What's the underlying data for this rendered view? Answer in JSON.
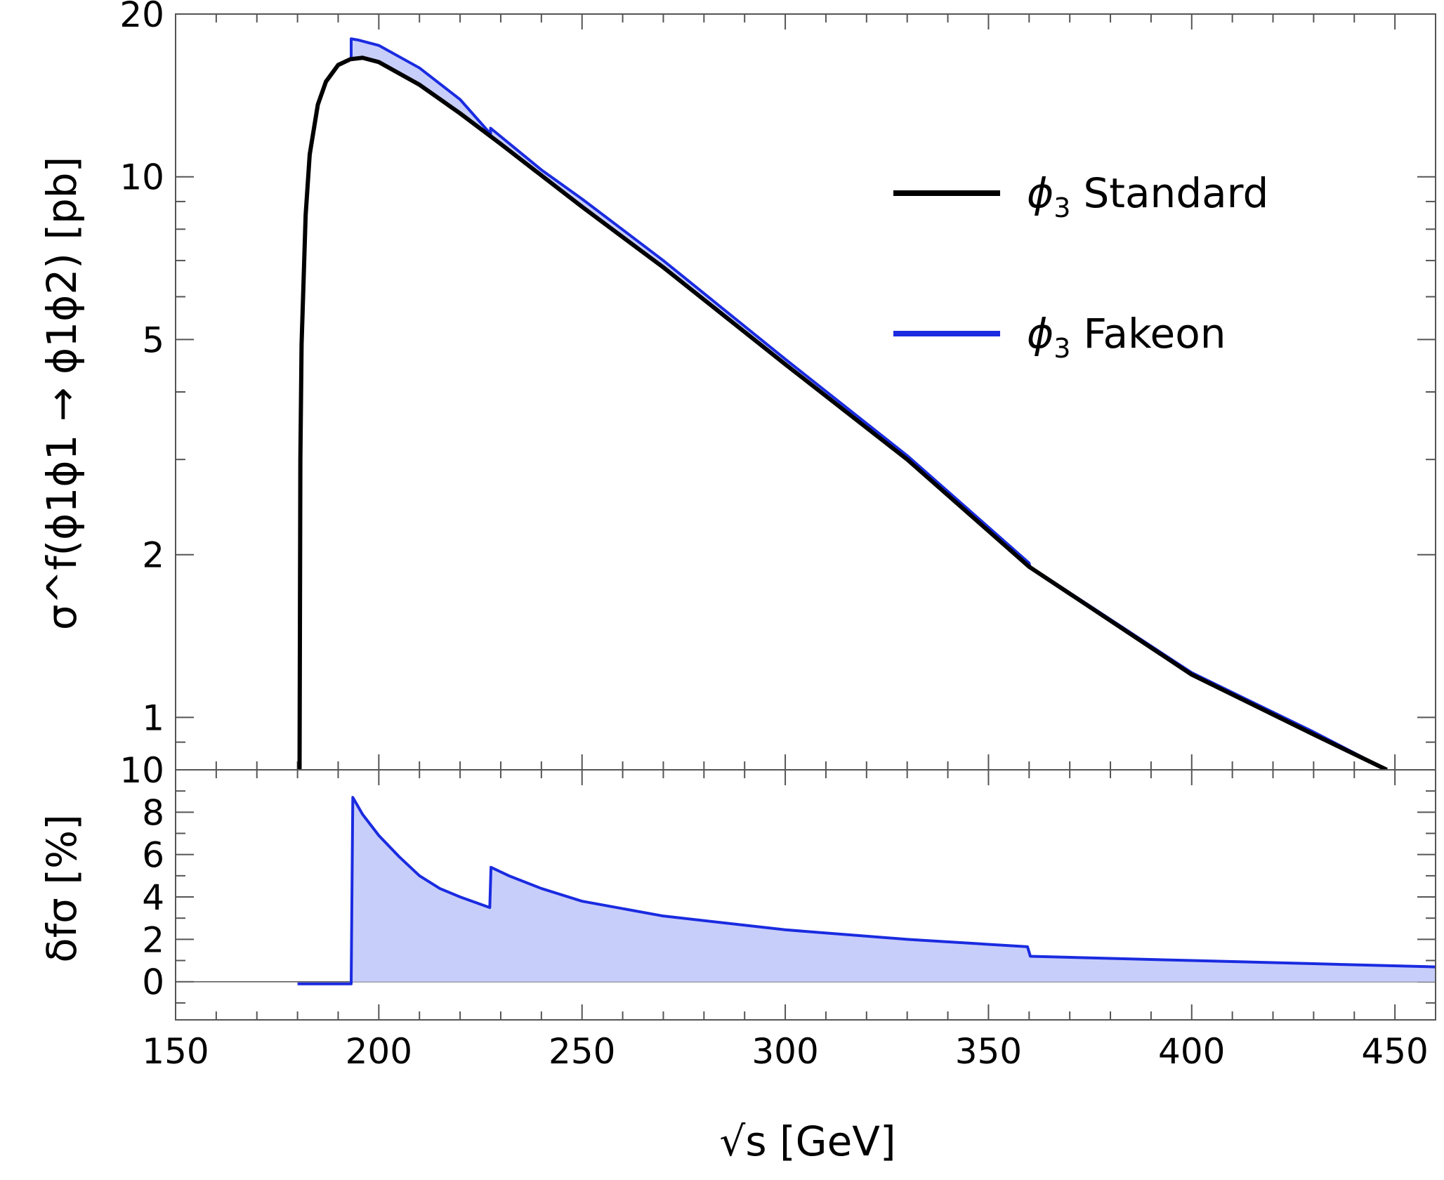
{
  "chart_data": [
    {
      "type": "line",
      "scale": "log",
      "xlabel": "√s [GeV]",
      "ylabel": "σ^f(ϕ1ϕ1 → ϕ1ϕ2) [pb]",
      "xlim": [
        150,
        460
      ],
      "ylim": [
        0.8,
        20
      ],
      "ytick_labels": [
        "1",
        "2",
        "5",
        "10",
        "20"
      ],
      "legend_position": "upper-right",
      "series": [
        {
          "name": "ϕ3 Standard",
          "legend_symbol": "ϕ",
          "legend_subscript": "3",
          "legend_text": "Standard",
          "color": "#000000",
          "x": [
            180.5,
            180.7,
            181,
            182,
            183,
            185,
            187,
            190,
            193,
            196,
            200,
            210,
            220,
            230,
            250,
            270,
            300,
            330,
            360,
            400,
            430,
            448
          ],
          "y": [
            0.8,
            3.0,
            4.9,
            8.5,
            11.0,
            13.6,
            15.0,
            16.1,
            16.5,
            16.6,
            16.3,
            14.8,
            13.1,
            11.5,
            8.8,
            6.8,
            4.5,
            3.0,
            1.9,
            1.2,
            0.93,
            0.8
          ]
        },
        {
          "name": "ϕ3 Fakeon",
          "legend_symbol": "ϕ",
          "legend_subscript": "3",
          "legend_text": "Fakeon",
          "color": "#1a2be0",
          "x": [
            193.2,
            193.2,
            195,
            200,
            210,
            220,
            227.5,
            227.5,
            240,
            250,
            270,
            300,
            330,
            360,
            360.2,
            400,
            430,
            448
          ],
          "y": [
            16.6,
            18.0,
            17.9,
            17.5,
            15.9,
            13.9,
            12.0,
            12.3,
            10.3,
            9.1,
            7.0,
            4.6,
            3.05,
            1.93,
            1.9,
            1.21,
            0.94,
            0.8
          ]
        }
      ]
    },
    {
      "type": "area",
      "xlabel": "√s [GeV]",
      "ylabel": "δfσ [%]",
      "xlim": [
        150,
        460
      ],
      "ylim": [
        -1.8,
        10
      ],
      "xticks": [
        150,
        200,
        250,
        300,
        350,
        400,
        450
      ],
      "xtick_labels": [
        "150",
        "200",
        "250",
        "300",
        "350",
        "400",
        "450"
      ],
      "ytick_labels": [
        "0",
        "2",
        "4",
        "6",
        "8",
        "10"
      ],
      "series": [
        {
          "name": "δfσ",
          "color": "#1a2be0",
          "fill": "#c8cefa",
          "x": [
            180,
            193.2,
            193.6,
            196,
            200,
            205,
            210,
            215,
            220,
            227.3,
            227.6,
            232,
            240,
            250,
            270,
            300,
            330,
            359.6,
            360.3,
            400,
            430,
            460
          ],
          "y": [
            -0.1,
            -0.1,
            8.7,
            7.9,
            6.9,
            5.9,
            5.0,
            4.4,
            4.0,
            3.5,
            5.4,
            5.0,
            4.4,
            3.8,
            3.1,
            2.45,
            2.0,
            1.65,
            1.2,
            1.0,
            0.85,
            0.7
          ]
        }
      ]
    }
  ]
}
